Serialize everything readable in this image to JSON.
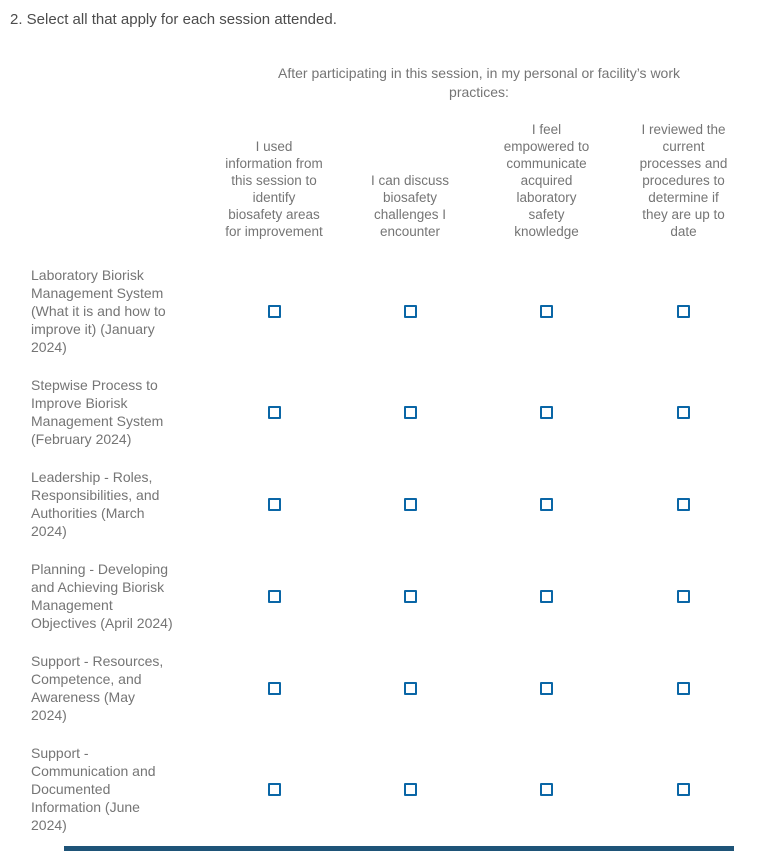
{
  "question": {
    "title": "2. Select all that apply for each session attended."
  },
  "matrix": {
    "group_header": "After participating in this session, in my personal or facility’s work\npractices:",
    "columns": [
      "I used\ninformation from\nthis session to\nidentify\nbiosafety areas\nfor improvement",
      "I can discuss\nbiosafety\nchallenges I\nencounter",
      "I feel\nempowered to\ncommunicate\nacquired\nlaboratory\nsafety\nknowledge",
      "I reviewed the\ncurrent\nprocesses and\nprocedures to\ndetermine if\nthey are up to\ndate"
    ],
    "rows": [
      "Laboratory Biorisk\nManagement System\n(What it is and how to\nimprove it) (January\n2024)",
      "Stepwise Process to\nImprove Biorisk\nManagement System\n(February 2024)",
      "Leadership - Roles,\nResponsibilities, and\nAuthorities (March\n2024)",
      "Planning - Developing\nand Achieving Biorisk\nManagement\nObjectives (April 2024)",
      "Support - Resources,\nCompetence, and\nAwareness (May\n2024)",
      "Support -\nCommunication and\nDocumented\nInformation (June\n2024)"
    ],
    "checkboxes": {
      "state": "unchecked",
      "checked_count": 0,
      "total": 24
    }
  },
  "colors": {
    "checkbox_border": "#0a66a6",
    "question_title_text": "#4c4c4c",
    "matrix_text": "#757575",
    "cutoff_bar": "#1e5478",
    "page_bg": "#ffffff"
  }
}
